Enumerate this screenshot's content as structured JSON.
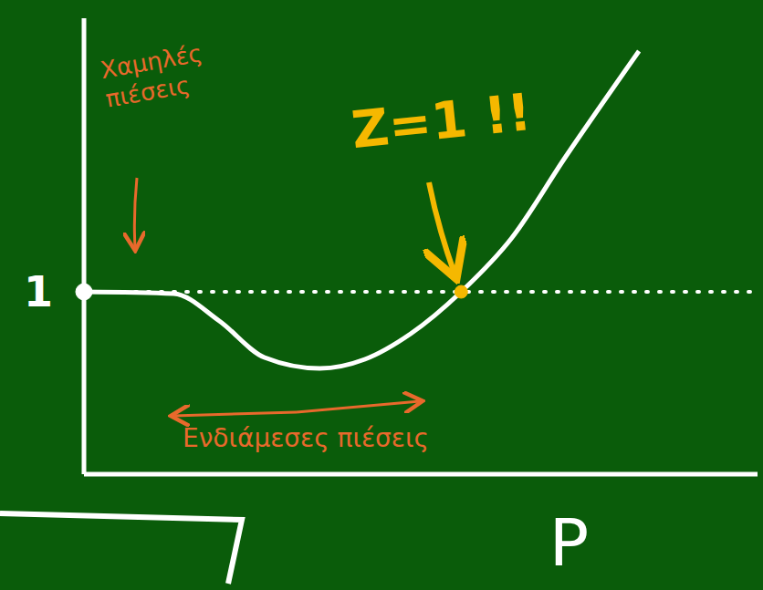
{
  "chart_data": {
    "type": "line",
    "x_label": "P",
    "x": [
      0,
      1.33,
      2.01,
      2.68,
      3.5,
      4.17,
      4.85,
      5.6,
      6.34,
      7.15,
      8.24
    ],
    "values": [
      1,
      0.99,
      0.84,
      0.64,
      0.58,
      0.63,
      0.77,
      1,
      1.29,
      1.74,
      2.32
    ],
    "color": "#ffffff",
    "xlim": [
      0,
      10
    ],
    "ylim": [
      0,
      2.5
    ],
    "yticks": [
      1
    ],
    "tick_labels": "y",
    "reference_y": 1,
    "marked_point": {
      "x": 5.6,
      "y": 1,
      "color": "#f5b800"
    },
    "annotations": [
      {
        "text": "Χαμηλές πιέσεις",
        "color": "#e8692c"
      },
      {
        "text": "Ενδιάμεσες πιέσεις",
        "color": "#e8692c"
      },
      {
        "text": "Z=1 !!",
        "color": "#f5b800"
      }
    ]
  }
}
